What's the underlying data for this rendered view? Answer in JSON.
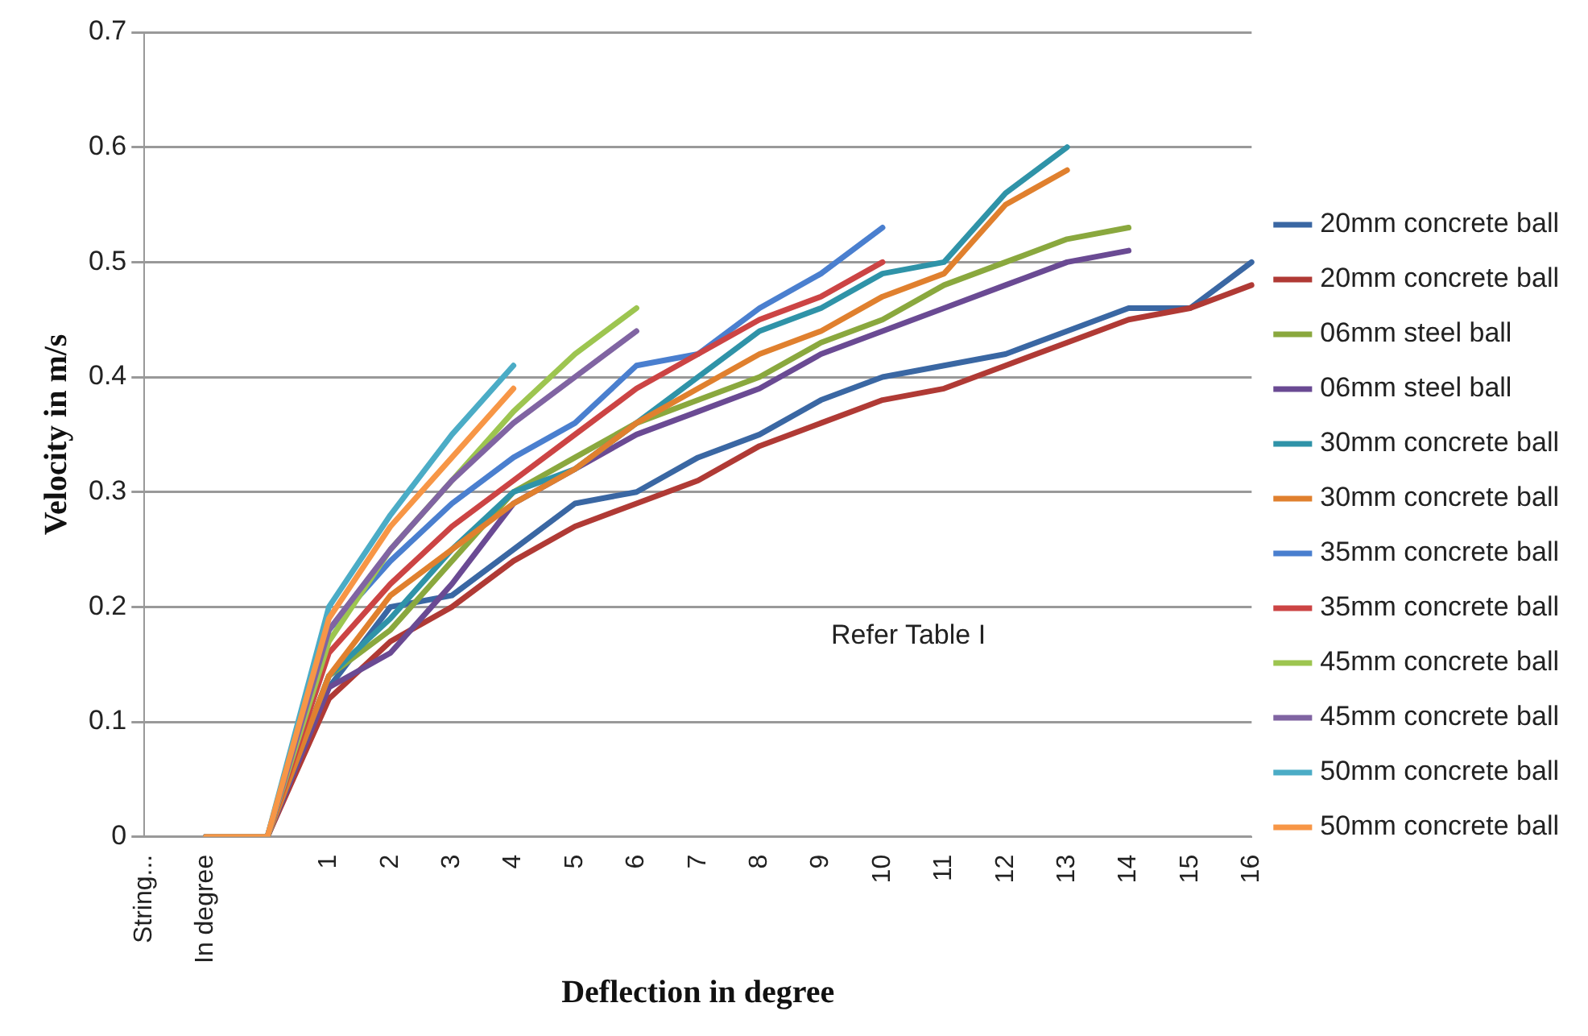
{
  "chart_data": {
    "type": "line",
    "xlabel": "Deflection in degree",
    "ylabel": "Velocity in m/s",
    "categories": [
      "String...",
      "In degree",
      null,
      "1",
      "2",
      "3",
      "4",
      "5",
      "6",
      "7",
      "8",
      "9",
      "10",
      "11",
      "12",
      "13",
      "14",
      "15",
      "16"
    ],
    "ylim": [
      0,
      0.7
    ],
    "yticks": [
      0,
      0.1,
      0.2,
      0.3,
      0.4,
      0.5,
      0.6,
      0.7
    ],
    "grid": "y",
    "legend": "right",
    "marker": "none",
    "annotations": [
      "Refer Table I"
    ],
    "series": [
      {
        "name": "20mm concrete ball",
        "color": "#3a67a3",
        "values": [
          null,
          0,
          0,
          0.13,
          0.2,
          0.21,
          0.25,
          0.29,
          0.3,
          0.33,
          0.35,
          0.38,
          0.4,
          0.41,
          0.42,
          0.44,
          0.46,
          0.46,
          0.5
        ]
      },
      {
        "name": "20mm concrete ball",
        "color": "#b03a35",
        "values": [
          null,
          0,
          0,
          0.12,
          0.17,
          0.2,
          0.24,
          0.27,
          0.29,
          0.31,
          0.34,
          0.36,
          0.38,
          0.39,
          0.41,
          0.43,
          0.45,
          0.46,
          0.48
        ]
      },
      {
        "name": "06mm steel ball",
        "color": "#8aa83e",
        "values": [
          null,
          0,
          0,
          0.14,
          0.18,
          0.24,
          0.3,
          0.33,
          0.36,
          0.38,
          0.4,
          0.43,
          0.45,
          0.48,
          0.5,
          0.52,
          0.53,
          null,
          null
        ]
      },
      {
        "name": "06mm steel ball",
        "color": "#6a4a93",
        "values": [
          null,
          0,
          0,
          0.13,
          0.16,
          0.22,
          0.29,
          0.32,
          0.35,
          0.37,
          0.39,
          0.42,
          0.44,
          0.46,
          0.48,
          0.5,
          0.51,
          null,
          null
        ]
      },
      {
        "name": "30mm concrete ball",
        "color": "#2f93a8",
        "values": [
          null,
          0,
          0,
          0.14,
          0.19,
          0.25,
          0.3,
          0.32,
          0.36,
          0.4,
          0.44,
          0.46,
          0.49,
          0.5,
          0.56,
          0.6,
          null,
          null,
          null
        ]
      },
      {
        "name": "30mm concrete ball",
        "color": "#e0802e",
        "values": [
          null,
          0,
          0,
          0.14,
          0.21,
          0.25,
          0.29,
          0.32,
          0.36,
          0.39,
          0.42,
          0.44,
          0.47,
          0.49,
          0.55,
          0.58,
          null,
          null,
          null
        ]
      },
      {
        "name": "35mm concrete ball",
        "color": "#4a7fcf",
        "values": [
          null,
          0,
          0,
          0.18,
          0.24,
          0.29,
          0.33,
          0.36,
          0.41,
          0.42,
          0.46,
          0.49,
          0.53,
          null,
          null,
          null,
          null,
          null,
          null
        ]
      },
      {
        "name": "35mm concrete ball",
        "color": "#cc4444",
        "values": [
          null,
          0,
          0,
          0.16,
          0.22,
          0.27,
          0.31,
          0.35,
          0.39,
          0.42,
          0.45,
          0.47,
          0.5,
          null,
          null,
          null,
          null,
          null,
          null
        ]
      },
      {
        "name": "45mm concrete ball",
        "color": "#9dc550",
        "values": [
          null,
          0,
          0,
          0.17,
          0.25,
          0.31,
          0.37,
          0.42,
          0.46,
          null,
          null,
          null,
          null,
          null,
          null,
          null,
          null,
          null,
          null
        ]
      },
      {
        "name": "45mm concrete ball",
        "color": "#8064a2",
        "values": [
          null,
          0,
          0,
          0.18,
          0.25,
          0.31,
          0.36,
          0.4,
          0.44,
          null,
          null,
          null,
          null,
          null,
          null,
          null,
          null,
          null,
          null
        ]
      },
      {
        "name": "50mm concrete ball",
        "color": "#4bacc6",
        "values": [
          null,
          0,
          0,
          0.2,
          0.28,
          0.35,
          0.41,
          null,
          null,
          null,
          null,
          null,
          null,
          null,
          null,
          null,
          null,
          null,
          null
        ]
      },
      {
        "name": "50mm concrete ball",
        "color": "#f79646",
        "values": [
          null,
          0,
          0,
          0.19,
          0.27,
          0.33,
          0.39,
          null,
          null,
          null,
          null,
          null,
          null,
          null,
          null,
          null,
          null,
          null,
          null
        ]
      }
    ]
  }
}
